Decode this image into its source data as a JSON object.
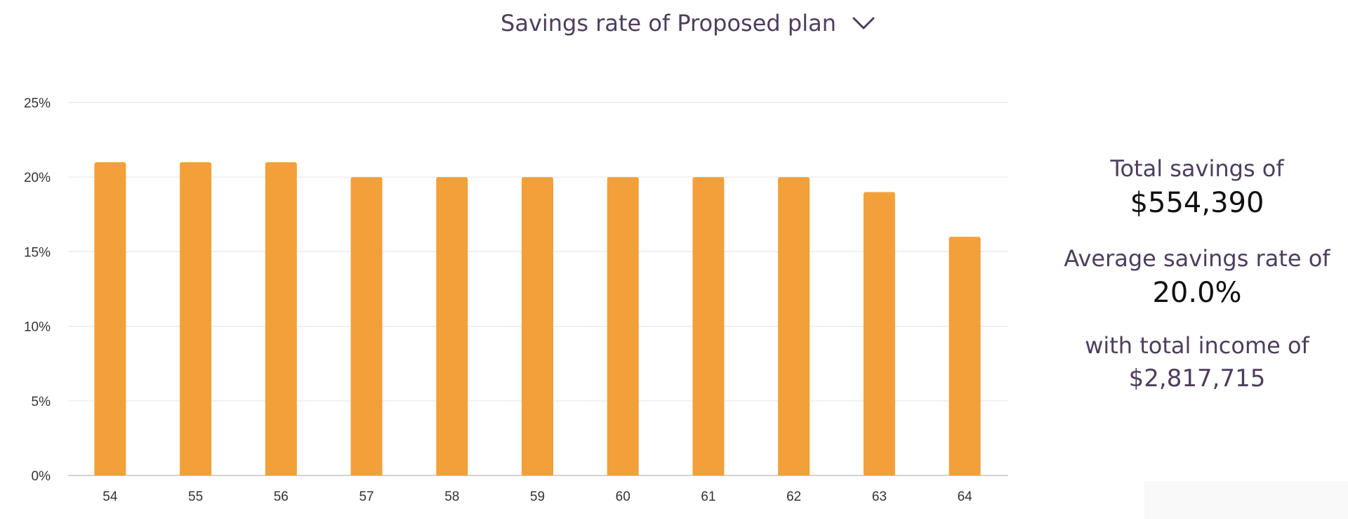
{
  "selector": {
    "label": "Savings rate of Proposed plan",
    "icon": "chevron-down-icon"
  },
  "chart_data": {
    "type": "bar",
    "title": "",
    "xlabel": "",
    "ylabel": "",
    "categories": [
      "54",
      "55",
      "56",
      "57",
      "58",
      "59",
      "60",
      "61",
      "62",
      "63",
      "64"
    ],
    "values": [
      21,
      21,
      21,
      20,
      20,
      20,
      20,
      20,
      20,
      19,
      16
    ],
    "ylim": [
      0,
      25
    ],
    "yticks": [
      "0%",
      "5%",
      "10%",
      "15%",
      "20%",
      "25%"
    ],
    "ytick_values": [
      0,
      5,
      10,
      15,
      20,
      25
    ],
    "y_unit": "%",
    "grid": true,
    "legend": "none",
    "bar_color": "#f2a03a"
  },
  "summary": {
    "total_savings_label": "Total savings of",
    "total_savings_value": "$554,390",
    "avg_rate_label": "Average savings rate of",
    "avg_rate_value": "20.0%",
    "total_income_label": "with total income of",
    "total_income_value": "$2,817,715"
  },
  "colors": {
    "accent_text": "#4e3d5c",
    "bar": "#f2a03a",
    "grid": "#e8e8ea",
    "axis_text": "#333333"
  }
}
